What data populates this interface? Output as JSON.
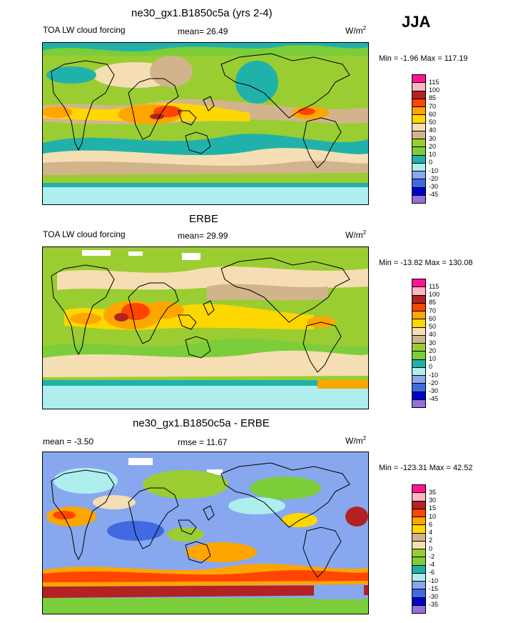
{
  "season": "JJA",
  "panels": [
    {
      "title": "ne30_gx1.B1850c5a (yrs 2-4)",
      "left_label": "TOA LW cloud forcing",
      "center_label": "mean=  26.49",
      "units_base": "W/m",
      "units_exp": "2",
      "minmax": "Min =  -1.96 Max = 117.19",
      "legend": {
        "labels": [
          "115",
          "100",
          "85",
          "70",
          "60",
          "50",
          "40",
          "30",
          "20",
          "10",
          "0",
          "-10",
          "-20",
          "-30",
          "-45"
        ],
        "colors": [
          "#ff1493",
          "#ffb6c1",
          "#b22222",
          "#ff4500",
          "#ffa500",
          "#ffd700",
          "#f5deb3",
          "#d2b48c",
          "#9acd32",
          "#7ccd3a",
          "#20b2aa",
          "#afeeee",
          "#87a8ee",
          "#4169e1",
          "#0000cd",
          "#9370db"
        ]
      }
    },
    {
      "title": "ERBE",
      "left_label": "TOA LW cloud forcing",
      "center_label": "mean=  29.99",
      "units_base": "W/m",
      "units_exp": "2",
      "minmax": "Min = -13.82 Max = 130.08",
      "legend": {
        "labels": [
          "115",
          "100",
          "85",
          "70",
          "60",
          "50",
          "40",
          "30",
          "20",
          "10",
          "0",
          "-10",
          "-20",
          "-30",
          "-45"
        ],
        "colors": [
          "#ff1493",
          "#ffb6c1",
          "#b22222",
          "#ff4500",
          "#ffa500",
          "#ffd700",
          "#f5deb3",
          "#d2b48c",
          "#9acd32",
          "#7ccd3a",
          "#20b2aa",
          "#afeeee",
          "#87a8ee",
          "#4169e1",
          "#0000cd",
          "#9370db"
        ]
      }
    },
    {
      "title": "ne30_gx1.B1850c5a - ERBE",
      "left_label": "mean =  -3.50",
      "center_label": "rmse =  11.67",
      "units_base": "W/m",
      "units_exp": "2",
      "minmax": "Min = -123.31 Max =  42.52",
      "legend": {
        "labels": [
          "35",
          "30",
          "15",
          "10",
          "6",
          "4",
          "2",
          "0",
          "-2",
          "-4",
          "-6",
          "-10",
          "-15",
          "-30",
          "-35"
        ],
        "colors": [
          "#ff1493",
          "#ffb6c1",
          "#b22222",
          "#ff4500",
          "#ffa500",
          "#ffd700",
          "#d2b48c",
          "#f5deb3",
          "#9acd32",
          "#7ccd3a",
          "#20b2aa",
          "#afeeee",
          "#87a8ee",
          "#4169e1",
          "#0000cd",
          "#9370db"
        ]
      }
    }
  ],
  "chart_data": [
    {
      "type": "heatmap",
      "title": "ne30_gx1.B1850c5a (yrs 2-4)",
      "variable": "TOA LW cloud forcing",
      "mean": 26.49,
      "min": -1.96,
      "max": 117.19,
      "contour_levels": [
        -45,
        -30,
        -20,
        -10,
        0,
        10,
        20,
        30,
        40,
        50,
        60,
        70,
        85,
        100,
        115
      ]
    },
    {
      "type": "heatmap",
      "title": "ERBE",
      "variable": "TOA LW cloud forcing",
      "mean": 29.99,
      "min": -13.82,
      "max": 130.08,
      "contour_levels": [
        -45,
        -30,
        -20,
        -10,
        0,
        10,
        20,
        30,
        40,
        50,
        60,
        70,
        85,
        100,
        115
      ]
    },
    {
      "type": "heatmap",
      "title": "ne30_gx1.B1850c5a - ERBE",
      "mean": -3.5,
      "rmse": 11.67,
      "min": -123.31,
      "max": 42.52,
      "contour_levels": [
        -35,
        -30,
        -15,
        -10,
        -6,
        -4,
        -2,
        0,
        2,
        4,
        6,
        10,
        15,
        30,
        35
      ]
    }
  ]
}
